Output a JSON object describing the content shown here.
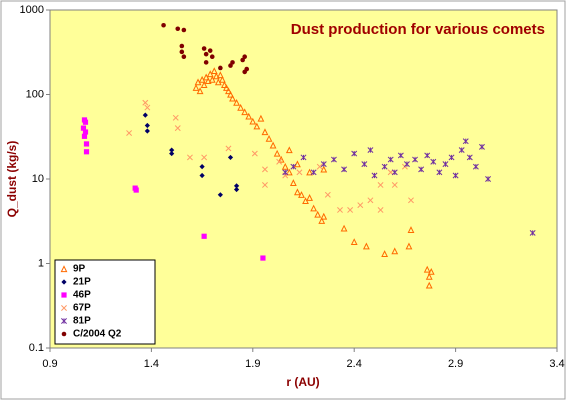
{
  "chart_data": {
    "type": "scatter",
    "title": "Dust production for various comets",
    "x_label": "r (AU)",
    "y_label": "Q_dust (kg/s)",
    "xlim": [
      0.9,
      3.4
    ],
    "xticks": [
      0.9,
      1.4,
      1.9,
      2.4,
      2.9,
      3.4
    ],
    "ylim": [
      0.1,
      1000
    ],
    "yticks": [
      0.1,
      1,
      10,
      100,
      1000
    ],
    "ylog": true,
    "grid": false,
    "legend": "lower left",
    "series": [
      {
        "name": "9P",
        "color": "#ff6a00",
        "marker": "triangle",
        "x": [
          1.62,
          1.63,
          1.64,
          1.65,
          1.66,
          1.67,
          1.68,
          1.69,
          1.7,
          1.71,
          1.72,
          1.73,
          1.74,
          1.75,
          1.76,
          1.77,
          1.78,
          1.79,
          1.8,
          1.82,
          1.84,
          1.86,
          1.88,
          1.9,
          1.92,
          1.94,
          1.96,
          1.98,
          2.0,
          2.02,
          2.04,
          2.06,
          2.08,
          2.08,
          2.1,
          2.12,
          2.12,
          2.14,
          2.16,
          2.18,
          2.18,
          2.2,
          2.22,
          2.24,
          2.25,
          2.25,
          2.35,
          2.4,
          2.46,
          2.55,
          2.6,
          2.67,
          2.68,
          2.76,
          2.77,
          2.77,
          2.78
        ],
        "values": [
          120,
          140,
          110,
          150,
          130,
          160,
          145,
          175,
          150,
          190,
          165,
          140,
          170,
          150,
          130,
          120,
          110,
          100,
          90,
          80,
          70,
          62,
          55,
          48,
          42,
          52,
          36,
          30,
          25,
          20,
          17,
          14,
          12,
          22,
          9,
          7,
          15,
          6.5,
          5.5,
          6,
          12,
          4.5,
          3.8,
          3.2,
          3.6,
          13,
          2.6,
          1.8,
          1.6,
          1.3,
          1.4,
          1.6,
          2.5,
          0.85,
          0.7,
          0.55,
          0.8
        ]
      },
      {
        "name": "21P",
        "color": "#000066",
        "marker": "diamond",
        "x": [
          1.37,
          1.38,
          1.38,
          1.5,
          1.5,
          1.65,
          1.65,
          1.74,
          1.79,
          1.82,
          1.82
        ],
        "values": [
          57,
          43,
          37,
          22,
          20,
          14,
          11,
          6.5,
          18,
          8.3,
          7.5
        ]
      },
      {
        "name": "46P",
        "color": "#ff00ff",
        "marker": "square",
        "x": [
          1.07,
          1.075,
          1.065,
          1.075,
          1.07,
          1.08,
          1.08,
          1.32,
          1.325,
          1.66,
          1.95
        ],
        "values": [
          50,
          47,
          40,
          36,
          32,
          26,
          21,
          7.8,
          7.4,
          2.1,
          1.16
        ]
      },
      {
        "name": "67P",
        "color": "#ff9966",
        "marker": "x",
        "x": [
          1.29,
          1.37,
          1.38,
          1.52,
          1.53,
          1.59,
          1.66,
          1.78,
          1.91,
          1.96,
          1.96,
          2.03,
          2.06,
          2.13,
          2.23,
          2.27,
          2.33,
          2.38,
          2.43,
          2.48,
          2.53,
          2.53,
          2.58,
          2.6,
          2.65,
          2.68
        ],
        "values": [
          35,
          80,
          70,
          53,
          40,
          18,
          18,
          23,
          20,
          13,
          8.5,
          16,
          11,
          12,
          14,
          6.5,
          4.3,
          4.3,
          4.9,
          5.6,
          8.5,
          4.3,
          12,
          8.5,
          14,
          5.6
        ]
      },
      {
        "name": "81P",
        "color": "#7030a0",
        "marker": "star",
        "x": [
          2.06,
          2.1,
          2.15,
          2.2,
          2.25,
          2.3,
          2.35,
          2.4,
          2.45,
          2.48,
          2.5,
          2.55,
          2.58,
          2.6,
          2.63,
          2.66,
          2.7,
          2.73,
          2.76,
          2.79,
          2.82,
          2.85,
          2.88,
          2.9,
          2.93,
          2.95,
          2.97,
          3.0,
          3.03,
          3.06,
          3.28
        ],
        "values": [
          12,
          14,
          18,
          12,
          15,
          17,
          13,
          20,
          15,
          22,
          11,
          14,
          17,
          12,
          19,
          15,
          17,
          13,
          19,
          16,
          12,
          15,
          18,
          11,
          22,
          28,
          18,
          14,
          24,
          10,
          2.3
        ]
      },
      {
        "name": "C/2004 Q2",
        "color": "#800000",
        "marker": "circle",
        "x": [
          1.46,
          1.53,
          1.56,
          1.55,
          1.55,
          1.56,
          1.66,
          1.67,
          1.67,
          1.69,
          1.7,
          1.74,
          1.79,
          1.8,
          1.85,
          1.86,
          1.87,
          1.86
        ],
        "values": [
          660,
          600,
          580,
          375,
          320,
          280,
          350,
          300,
          240,
          330,
          280,
          206,
          220,
          240,
          256,
          185,
          200,
          280
        ]
      }
    ]
  }
}
